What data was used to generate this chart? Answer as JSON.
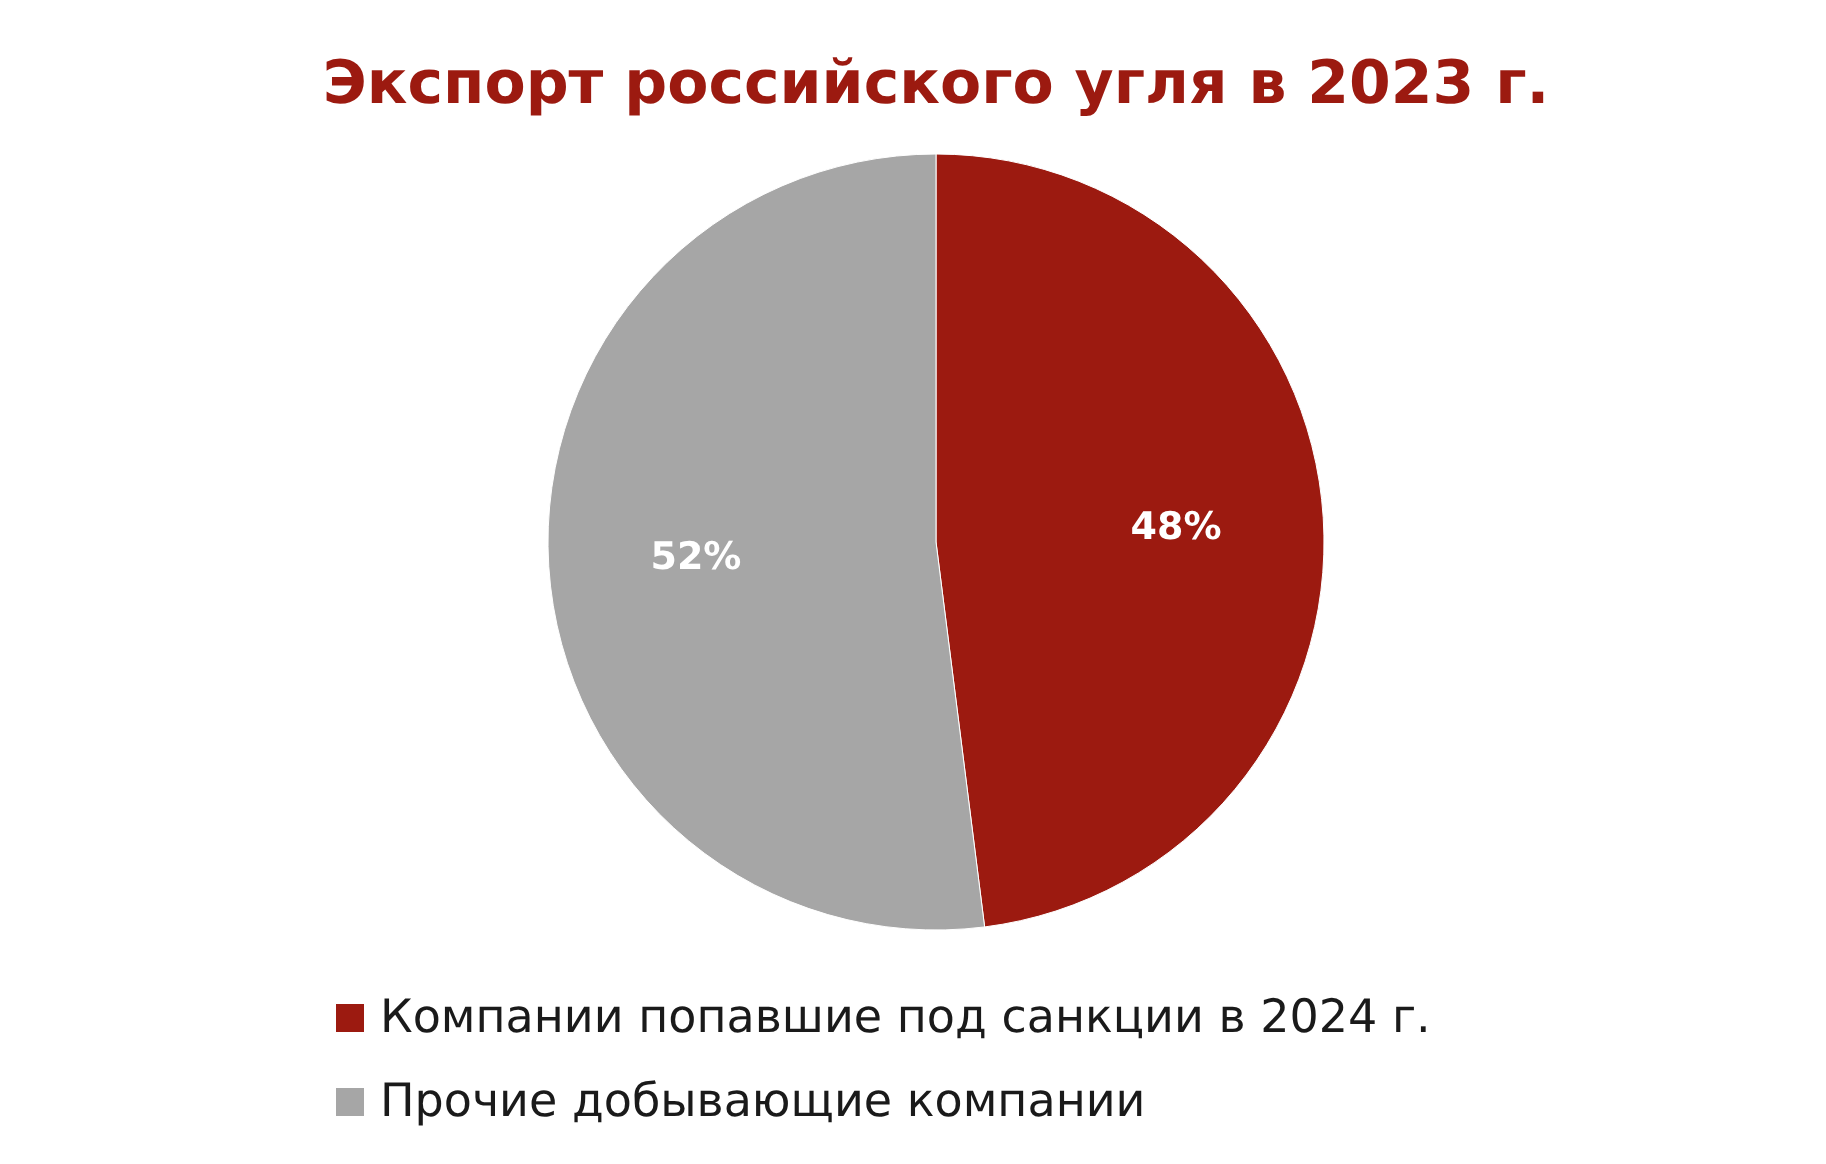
{
  "chart_data": {
    "type": "pie",
    "title": "Экспорт российского угля в 2023 г.",
    "categories": [
      "Компании попавшие под санкции в 2024 г.",
      "Прочие добывающие компании"
    ],
    "values": [
      48,
      52
    ],
    "colors": [
      "#9c1a10",
      "#a6a6a6"
    ],
    "value_labels": [
      "48%",
      "52%"
    ],
    "legend": "bottom"
  }
}
